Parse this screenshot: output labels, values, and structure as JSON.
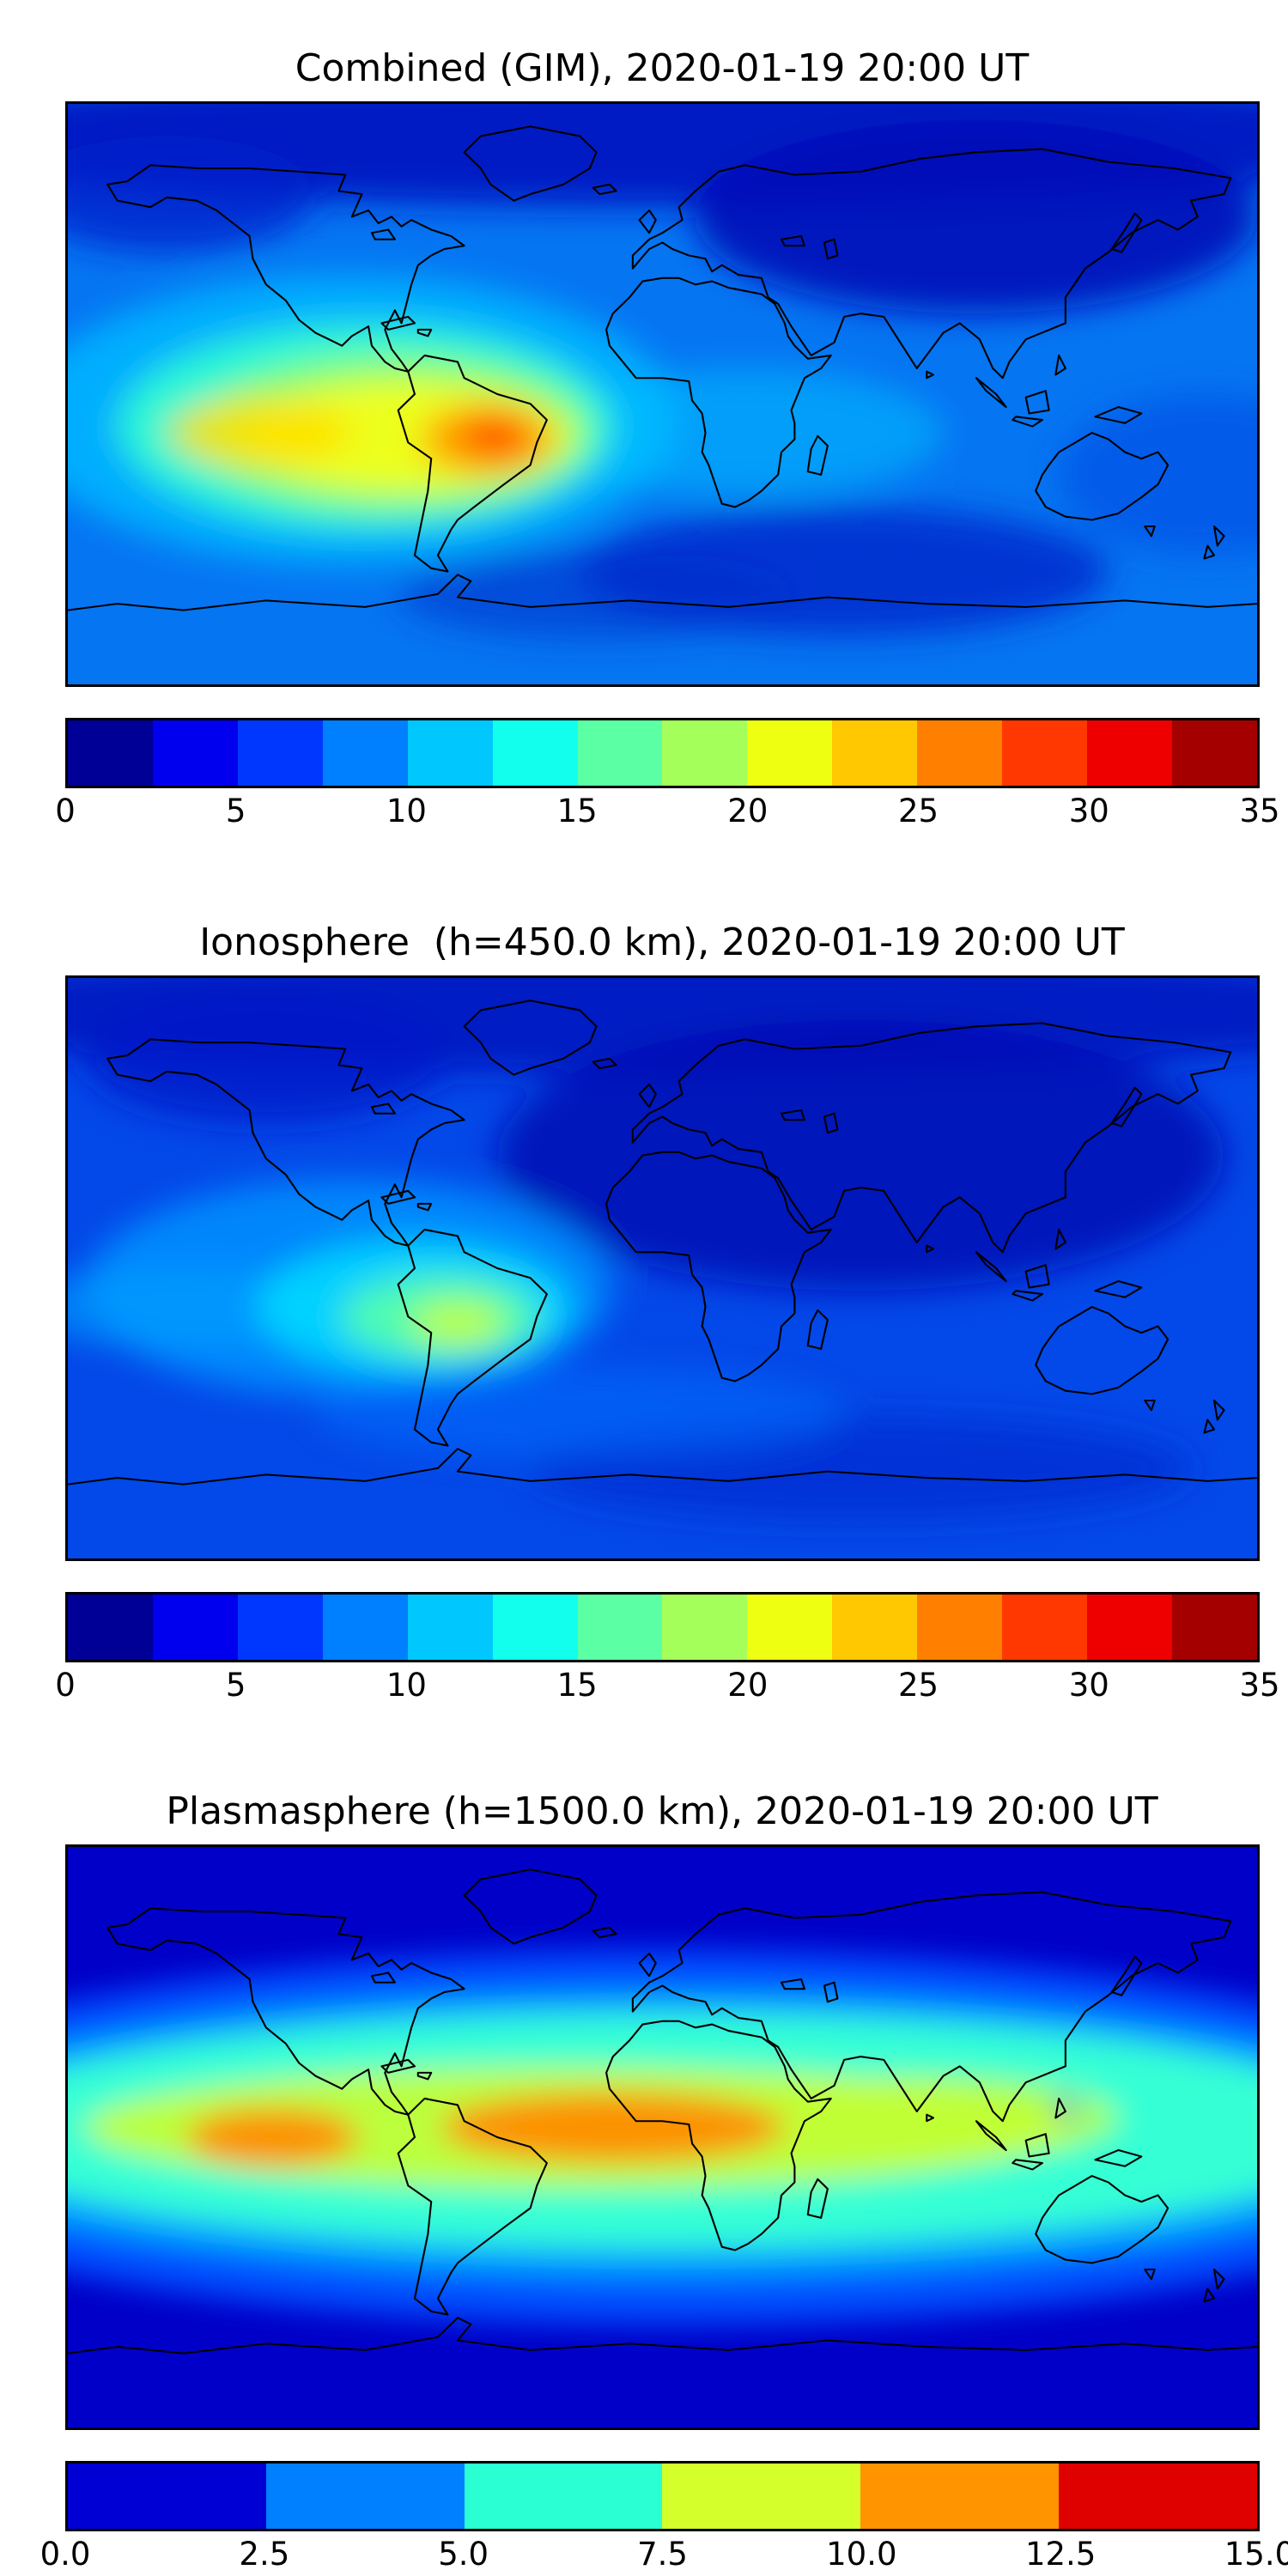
{
  "figure": {
    "background": "#ffffff",
    "n_panels": 3
  },
  "chart_data": [
    {
      "type": "heatmap",
      "title": "Combined (GIM), 2020-01-19 20:00 UT",
      "projection": "equirectangular",
      "lon_range": [
        -180,
        180
      ],
      "lat_range": [
        -90,
        90
      ],
      "colormap": "jet",
      "value_range": [
        0,
        35
      ],
      "contour_interval": 2.5,
      "legend_position": "bottom",
      "grid": false,
      "colorbar_ticks": [
        "0",
        "5",
        "10",
        "15",
        "20",
        "25",
        "30",
        "35"
      ],
      "colorbar_colors": [
        "#000096",
        "#0000ee",
        "#0037ff",
        "#0080ff",
        "#00c8ff",
        "#12ffee",
        "#5bffa4",
        "#a4ff5b",
        "#eeff12",
        "#ffc800",
        "#ff8000",
        "#ff3700",
        "#ee0000",
        "#a40000"
      ],
      "base_color": "#0575f2",
      "peak": {
        "description": "maximum over central South America",
        "lon": -51,
        "lat": -13,
        "approx_value": 32.5
      },
      "background_level_approx": 5,
      "field_features": [
        {
          "name": "polar-north-low",
          "lon": 0,
          "lat": 80,
          "rx": 240,
          "ry": 22,
          "color": "#0018c2",
          "opacity": 0.95
        },
        {
          "name": "asia-low",
          "lon": 95,
          "lat": 55,
          "rx": 85,
          "ry": 30,
          "color": "#000cb8",
          "opacity": 0.9
        },
        {
          "name": "alaska-low",
          "lon": -150,
          "lat": 62,
          "rx": 45,
          "ry": 18,
          "color": "#0020cc",
          "opacity": 0.8
        },
        {
          "name": "s-indian-low",
          "lon": 55,
          "lat": -55,
          "rx": 80,
          "ry": 20,
          "color": "#0028cc",
          "opacity": 0.85
        },
        {
          "name": "s-atlantic-low",
          "lon": -20,
          "lat": -62,
          "rx": 60,
          "ry": 14,
          "color": "#0030cc",
          "opacity": 0.6
        },
        {
          "name": "australia-low",
          "lon": 165,
          "lat": -25,
          "rx": 45,
          "ry": 25,
          "color": "#0040e0",
          "opacity": 0.5
        },
        {
          "name": "pacific-midlevel",
          "lon": -95,
          "lat": -8,
          "rx": 100,
          "ry": 45,
          "color": "#00b4ff",
          "opacity": 0.9
        },
        {
          "name": "africa-band",
          "lon": 25,
          "lat": -12,
          "rx": 60,
          "ry": 20,
          "color": "#00c0ff",
          "opacity": 0.55
        },
        {
          "name": "aqua-ring",
          "lon": -90,
          "lat": -10,
          "rx": 75,
          "ry": 32,
          "color": "#30ffd0",
          "opacity": 0.9
        },
        {
          "name": "green-ring",
          "lon": -82,
          "lat": -12,
          "rx": 60,
          "ry": 24,
          "color": "#90ff60",
          "opacity": 0.9
        },
        {
          "name": "yellow-band",
          "lon": -78,
          "lat": -13,
          "rx": 50,
          "ry": 17,
          "color": "#f2ff18",
          "opacity": 0.95
        },
        {
          "name": "yellow-west-lobe",
          "lon": -122,
          "lat": -12,
          "rx": 28,
          "ry": 11,
          "color": "#ffdf00",
          "opacity": 0.8
        },
        {
          "name": "orange-region",
          "lon": -53,
          "lat": -14,
          "rx": 20,
          "ry": 11,
          "color": "#ffa000",
          "opacity": 0.95
        },
        {
          "name": "peak-core",
          "lon": -51,
          "lat": -13,
          "rx": 10,
          "ry": 6,
          "color": "#ff5000",
          "opacity": 0.95
        }
      ]
    },
    {
      "type": "heatmap",
      "title": "Ionosphere  (h=450.0 km), 2020-01-19 20:00 UT",
      "projection": "equirectangular",
      "lon_range": [
        -180,
        180
      ],
      "lat_range": [
        -90,
        90
      ],
      "colormap": "jet",
      "value_range": [
        0,
        35
      ],
      "contour_interval": 2.5,
      "legend_position": "bottom",
      "grid": false,
      "colorbar_ticks": [
        "0",
        "5",
        "10",
        "15",
        "20",
        "25",
        "30",
        "35"
      ],
      "colorbar_colors": [
        "#000096",
        "#0000ee",
        "#0037ff",
        "#0080ff",
        "#00c8ff",
        "#12ffee",
        "#5bffa4",
        "#a4ff5b",
        "#eeff12",
        "#ffc800",
        "#ff8000",
        "#ff3700",
        "#ee0000",
        "#a40000"
      ],
      "base_color": "#0348e8",
      "peak": {
        "description": "maximum over western South America",
        "lon": -62,
        "lat": -17,
        "approx_value": 21
      },
      "background_level_approx": 4,
      "field_features": [
        {
          "name": "polar-north-low",
          "lon": 0,
          "lat": 80,
          "rx": 240,
          "ry": 20,
          "color": "#0018c0",
          "opacity": 0.9
        },
        {
          "name": "eurasia-africa-low",
          "lon": 60,
          "lat": 35,
          "rx": 110,
          "ry": 42,
          "color": "#0008b4",
          "opacity": 0.85
        },
        {
          "name": "n-america-low",
          "lon": -120,
          "lat": 65,
          "rx": 55,
          "ry": 20,
          "color": "#0018c8",
          "opacity": 0.8
        },
        {
          "name": "s-ocean-low",
          "lon": 60,
          "lat": -62,
          "rx": 100,
          "ry": 16,
          "color": "#0028d0",
          "opacity": 0.7
        },
        {
          "name": "pacific-midlevel",
          "lon": -95,
          "lat": -6,
          "rx": 80,
          "ry": 34,
          "color": "#0090ff",
          "opacity": 0.85
        },
        {
          "name": "pacific-band",
          "lon": -145,
          "lat": -12,
          "rx": 50,
          "ry": 13,
          "color": "#00a0ff",
          "opacity": 0.6
        },
        {
          "name": "south-atlantic-band",
          "lon": -25,
          "lat": -45,
          "rx": 80,
          "ry": 14,
          "color": "#0070ff",
          "opacity": 0.5
        },
        {
          "name": "cyan-region",
          "lon": -75,
          "lat": -12,
          "rx": 48,
          "ry": 21,
          "color": "#00d8ff",
          "opacity": 0.9
        },
        {
          "name": "aqua-green-region",
          "lon": -67,
          "lat": -15,
          "rx": 30,
          "ry": 13,
          "color": "#55ffaa",
          "opacity": 0.9
        },
        {
          "name": "peak-core",
          "lon": -62,
          "lat": -17,
          "rx": 14,
          "ry": 7,
          "color": "#c4ff3c",
          "opacity": 0.9
        }
      ]
    },
    {
      "type": "heatmap",
      "title": "Plasmasphere (h=1500.0 km), 2020-01-19 20:00 UT",
      "projection": "equirectangular",
      "lon_range": [
        -180,
        180
      ],
      "lat_range": [
        -90,
        90
      ],
      "colormap": "jet",
      "value_range": [
        0,
        15
      ],
      "contour_interval": 2.5,
      "legend_position": "bottom",
      "grid": false,
      "colorbar_ticks": [
        "0.0",
        "2.5",
        "5.0",
        "7.5",
        "10.0",
        "12.5",
        "15.0"
      ],
      "colorbar_colors": [
        "#0000d4",
        "#0080ff",
        "#2affd4",
        "#d4ff2a",
        "#ff9400",
        "#df0000"
      ],
      "base_color": "#0000c8",
      "peak": {
        "description": "equatorial maxima over east Pacific and Atlantic/Africa",
        "lon": -15,
        "lat": 3,
        "approx_value": 12
      },
      "background_level_approx": 1,
      "field_features": [
        {
          "name": "blue-equatorial-band",
          "lon": 0,
          "lat": 0,
          "rx": 260,
          "ry": 58,
          "color": "#0050ff",
          "opacity": 1
        },
        {
          "name": "azure-band",
          "lon": 0,
          "lat": 1,
          "rx": 235,
          "ry": 44,
          "color": "#00b0ff",
          "opacity": 0.9
        },
        {
          "name": "turquoise-band",
          "lon": 0,
          "lat": 2,
          "rx": 215,
          "ry": 36,
          "color": "#35ffd5",
          "opacity": 1
        },
        {
          "name": "yellowgreen-band",
          "lon": -25,
          "lat": 3,
          "rx": 150,
          "ry": 19,
          "color": "#c3ff35",
          "opacity": 0.95
        },
        {
          "name": "yellowgreen-east-lobe",
          "lon": 80,
          "lat": 6,
          "rx": 58,
          "ry": 13,
          "color": "#c3ff35",
          "opacity": 0.8
        },
        {
          "name": "orange-pacific-lobe",
          "lon": -118,
          "lat": 0,
          "rx": 26,
          "ry": 9,
          "color": "#ff8c00",
          "opacity": 0.95
        },
        {
          "name": "orange-atlantic-africa-lobe",
          "lon": -15,
          "lat": 3,
          "rx": 52,
          "ry": 11,
          "color": "#ff8c00",
          "opacity": 0.95
        },
        {
          "name": "speck-philippines",
          "lon": 122,
          "lat": 9,
          "rx": 3,
          "ry": 3,
          "color": "#0040ff",
          "opacity": 0.9
        }
      ]
    }
  ]
}
